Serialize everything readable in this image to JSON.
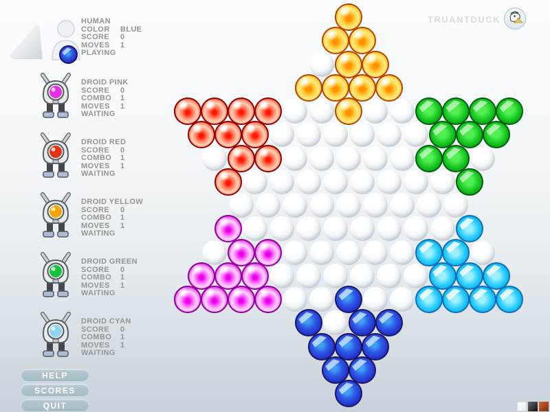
{
  "brand": {
    "name": "TRUANTDUCK",
    "logo_icon": "duck-logo"
  },
  "players": [
    {
      "kind": "human",
      "name": "HUMAN",
      "status": "PLAYING",
      "marble_color": "#2e58e8",
      "stats": [
        {
          "label": "COLOR",
          "value": "BLUE"
        },
        {
          "label": "SCORE",
          "value": "0"
        },
        {
          "label": "MOVES",
          "value": "1"
        }
      ]
    },
    {
      "kind": "droid",
      "name": "DROID PINK",
      "status": "WAITING",
      "eye": "#e62ee6",
      "stats": [
        {
          "label": "SCORE",
          "value": "0"
        },
        {
          "label": "COMBO",
          "value": "1"
        },
        {
          "label": "MOVES",
          "value": "1"
        }
      ]
    },
    {
      "kind": "droid",
      "name": "DROID RED",
      "status": "WAITING",
      "eye": "#e03414",
      "stats": [
        {
          "label": "SCORE",
          "value": "0"
        },
        {
          "label": "COMBO",
          "value": "1"
        },
        {
          "label": "MOVES",
          "value": "1"
        }
      ]
    },
    {
      "kind": "droid",
      "name": "DROID YELLOW",
      "status": "WAITING",
      "eye": "#f2a40a",
      "stats": [
        {
          "label": "SCORE",
          "value": "0"
        },
        {
          "label": "COMBO",
          "value": "1"
        },
        {
          "label": "MOVES",
          "value": "1"
        }
      ]
    },
    {
      "kind": "droid",
      "name": "DROID GREEN",
      "status": "WAITING",
      "eye": "#17c13d",
      "stats": [
        {
          "label": "SCORE",
          "value": "0"
        },
        {
          "label": "COMBO",
          "value": "1"
        },
        {
          "label": "MOVES",
          "value": "1"
        }
      ]
    },
    {
      "kind": "droid",
      "name": "DROID CYAN",
      "status": "WAITING",
      "eye": "#8fd4f2",
      "stats": [
        {
          "label": "SCORE",
          "value": "0"
        },
        {
          "label": "COMBO",
          "value": "1"
        },
        {
          "label": "MOVES",
          "value": "1"
        }
      ]
    }
  ],
  "buttons": [
    {
      "label": "HELP"
    },
    {
      "label": "SCORES"
    },
    {
      "label": "QUIT"
    }
  ],
  "board": {
    "description": "Chinese checkers star, 17 rows; . = empty hole",
    "rows": [
      "Y",
      "YY",
      ".YY",
      "YYYY",
      "RRRR..Y..GGGG",
      "RRR......GGG",
      ".RR.....GG.",
      "R........G",
      ".........",
      "M........C",
      ".MM.....CC.",
      "MMM......CCC",
      "MMMM..B..CCCC",
      "B.BB",
      "BBB",
      "BB",
      "B"
    ],
    "color_names": {
      "Y": "yellow",
      "R": "red",
      "G": "green",
      "M": "magenta",
      "C": "cyan",
      "B": "blue"
    },
    "colors": {
      "Y": "#ffc414",
      "R": "#e01000",
      "G": "#12c31c",
      "M": "#e53ae5",
      "C": "#2ed0fb",
      "B": "#2e58e8",
      "hole": "#e8edf0"
    }
  },
  "corner_swatches": [
    {
      "name": "light",
      "color": "#f2f5f6"
    },
    {
      "name": "dark",
      "color": "#1a1a1a"
    },
    {
      "name": "rust",
      "color": "#a84418"
    }
  ]
}
